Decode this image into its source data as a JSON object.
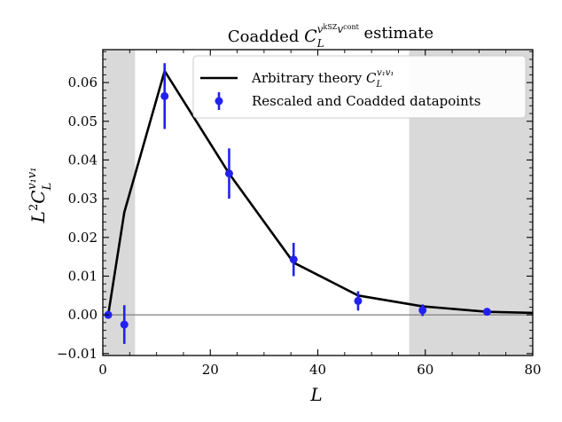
{
  "chart_data": {
    "type": "line",
    "title": {
      "prefix": "Coadded ",
      "symbol": "C",
      "sub": "L",
      "sup_v": "v",
      "sup_ksz": "kSZ",
      "sup_v2": "v",
      "sup_cont": "cont",
      "suffix": " estimate"
    },
    "xlabel": "L",
    "ylabel": {
      "pre": "L",
      "pow": "2",
      "sym": "C",
      "sub": "L",
      "sup": "v1v1"
    },
    "xlim": [
      0,
      80
    ],
    "ylim": [
      -0.0105,
      0.0685
    ],
    "x_ticks": [
      0,
      20,
      40,
      60,
      80
    ],
    "x_tick_labels": [
      "0",
      "20",
      "40",
      "60",
      "80"
    ],
    "y_ticks": [
      -0.01,
      0.0,
      0.01,
      0.02,
      0.03,
      0.04,
      0.05,
      0.06
    ],
    "y_tick_labels": [
      "−0.01",
      "0.00",
      "0.01",
      "0.02",
      "0.03",
      "0.04",
      "0.05",
      "0.06"
    ],
    "shaded_regions": [
      [
        0,
        6
      ],
      [
        57,
        80
      ]
    ],
    "zero_line": 0,
    "series": [
      {
        "name": "Arbitrary theory",
        "kind": "line",
        "color": "#000000",
        "x": [
          1,
          4,
          11.5,
          23.5,
          35.5,
          47.5,
          59.5,
          71.5,
          80
        ],
        "y": [
          0.0,
          0.0265,
          0.063,
          0.0365,
          0.0135,
          0.005,
          0.0022,
          0.0008,
          0.0005
        ]
      },
      {
        "name": "Rescaled and Coadded datapoints",
        "kind": "errorbar",
        "color": "#2222ee",
        "x": [
          1,
          4,
          11.5,
          23.5,
          35.5,
          47.5,
          59.5,
          71.5
        ],
        "y": [
          0.0,
          -0.0025,
          0.0565,
          0.0365,
          0.0143,
          0.0036,
          0.0012,
          0.0008
        ],
        "yerr": [
          0.0,
          0.005,
          0.0085,
          0.0065,
          0.0043,
          0.0025,
          0.0015,
          0.0006
        ]
      }
    ],
    "legend": {
      "position": "top-right",
      "entries": [
        {
          "text": "Arbitrary theory ",
          "math": {
            "sym": "C",
            "sub": "L",
            "sup": "v1v1"
          }
        },
        {
          "text": "Rescaled and Coadded datapoints"
        }
      ]
    },
    "colors": {
      "shade": "#d9d9d9",
      "zero_line": "#888888",
      "theory": "#000000",
      "points": "#2222ee"
    }
  }
}
